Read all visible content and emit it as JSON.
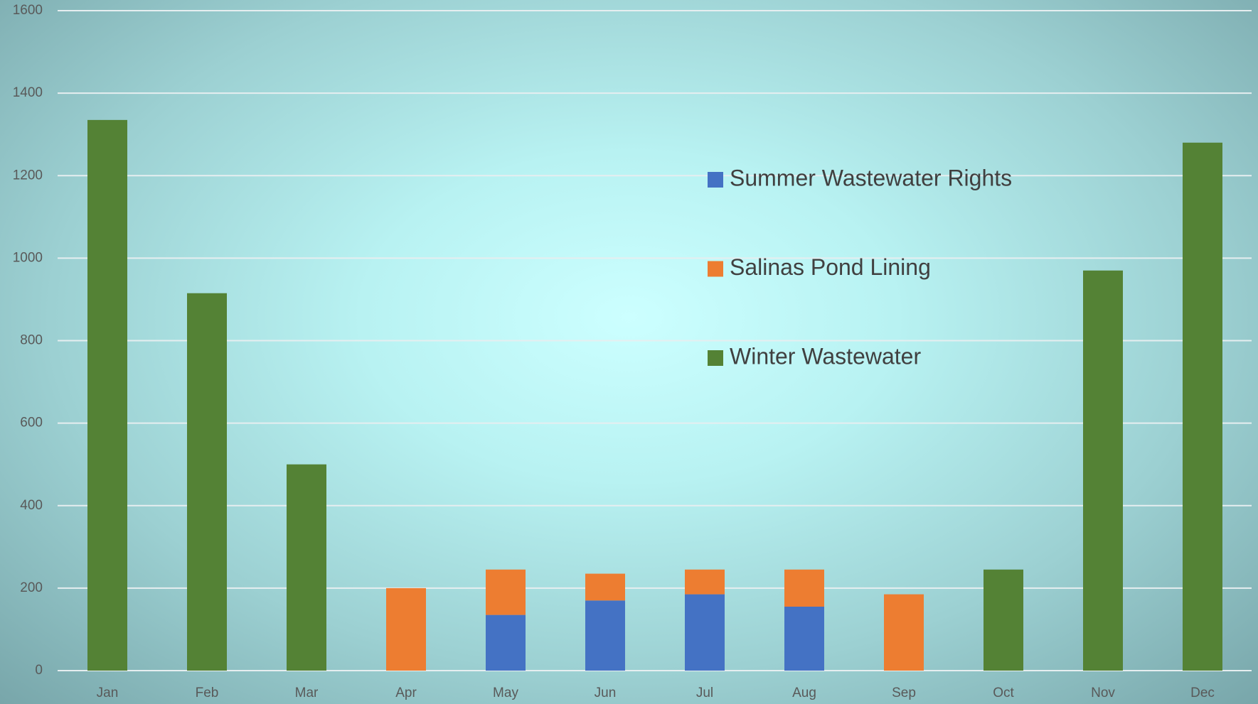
{
  "chart_data": {
    "type": "stacked_bar",
    "categories": [
      "Jan",
      "Feb",
      "Mar",
      "Apr",
      "May",
      "Jun",
      "Jul",
      "Aug",
      "Sep",
      "Oct",
      "Nov",
      "Dec"
    ],
    "series": [
      {
        "name": "Summer Wastewater Rights",
        "color": "#4472c4",
        "values": [
          null,
          null,
          null,
          null,
          135,
          170,
          185,
          155,
          null,
          null,
          null,
          null
        ]
      },
      {
        "name": "Salinas Pond Lining",
        "color": "#ed7d31",
        "values": [
          null,
          null,
          null,
          200,
          110,
          65,
          60,
          90,
          185,
          null,
          null,
          null
        ]
      },
      {
        "name": "Winter Wastewater",
        "color": "#548235",
        "values": [
          1335,
          915,
          500,
          null,
          null,
          null,
          null,
          null,
          null,
          245,
          970,
          1280
        ]
      }
    ],
    "ylim": [
      0,
      1600
    ],
    "yticks": [
      0,
      200,
      400,
      600,
      800,
      1000,
      1200,
      1400,
      1600
    ],
    "grid": true
  }
}
